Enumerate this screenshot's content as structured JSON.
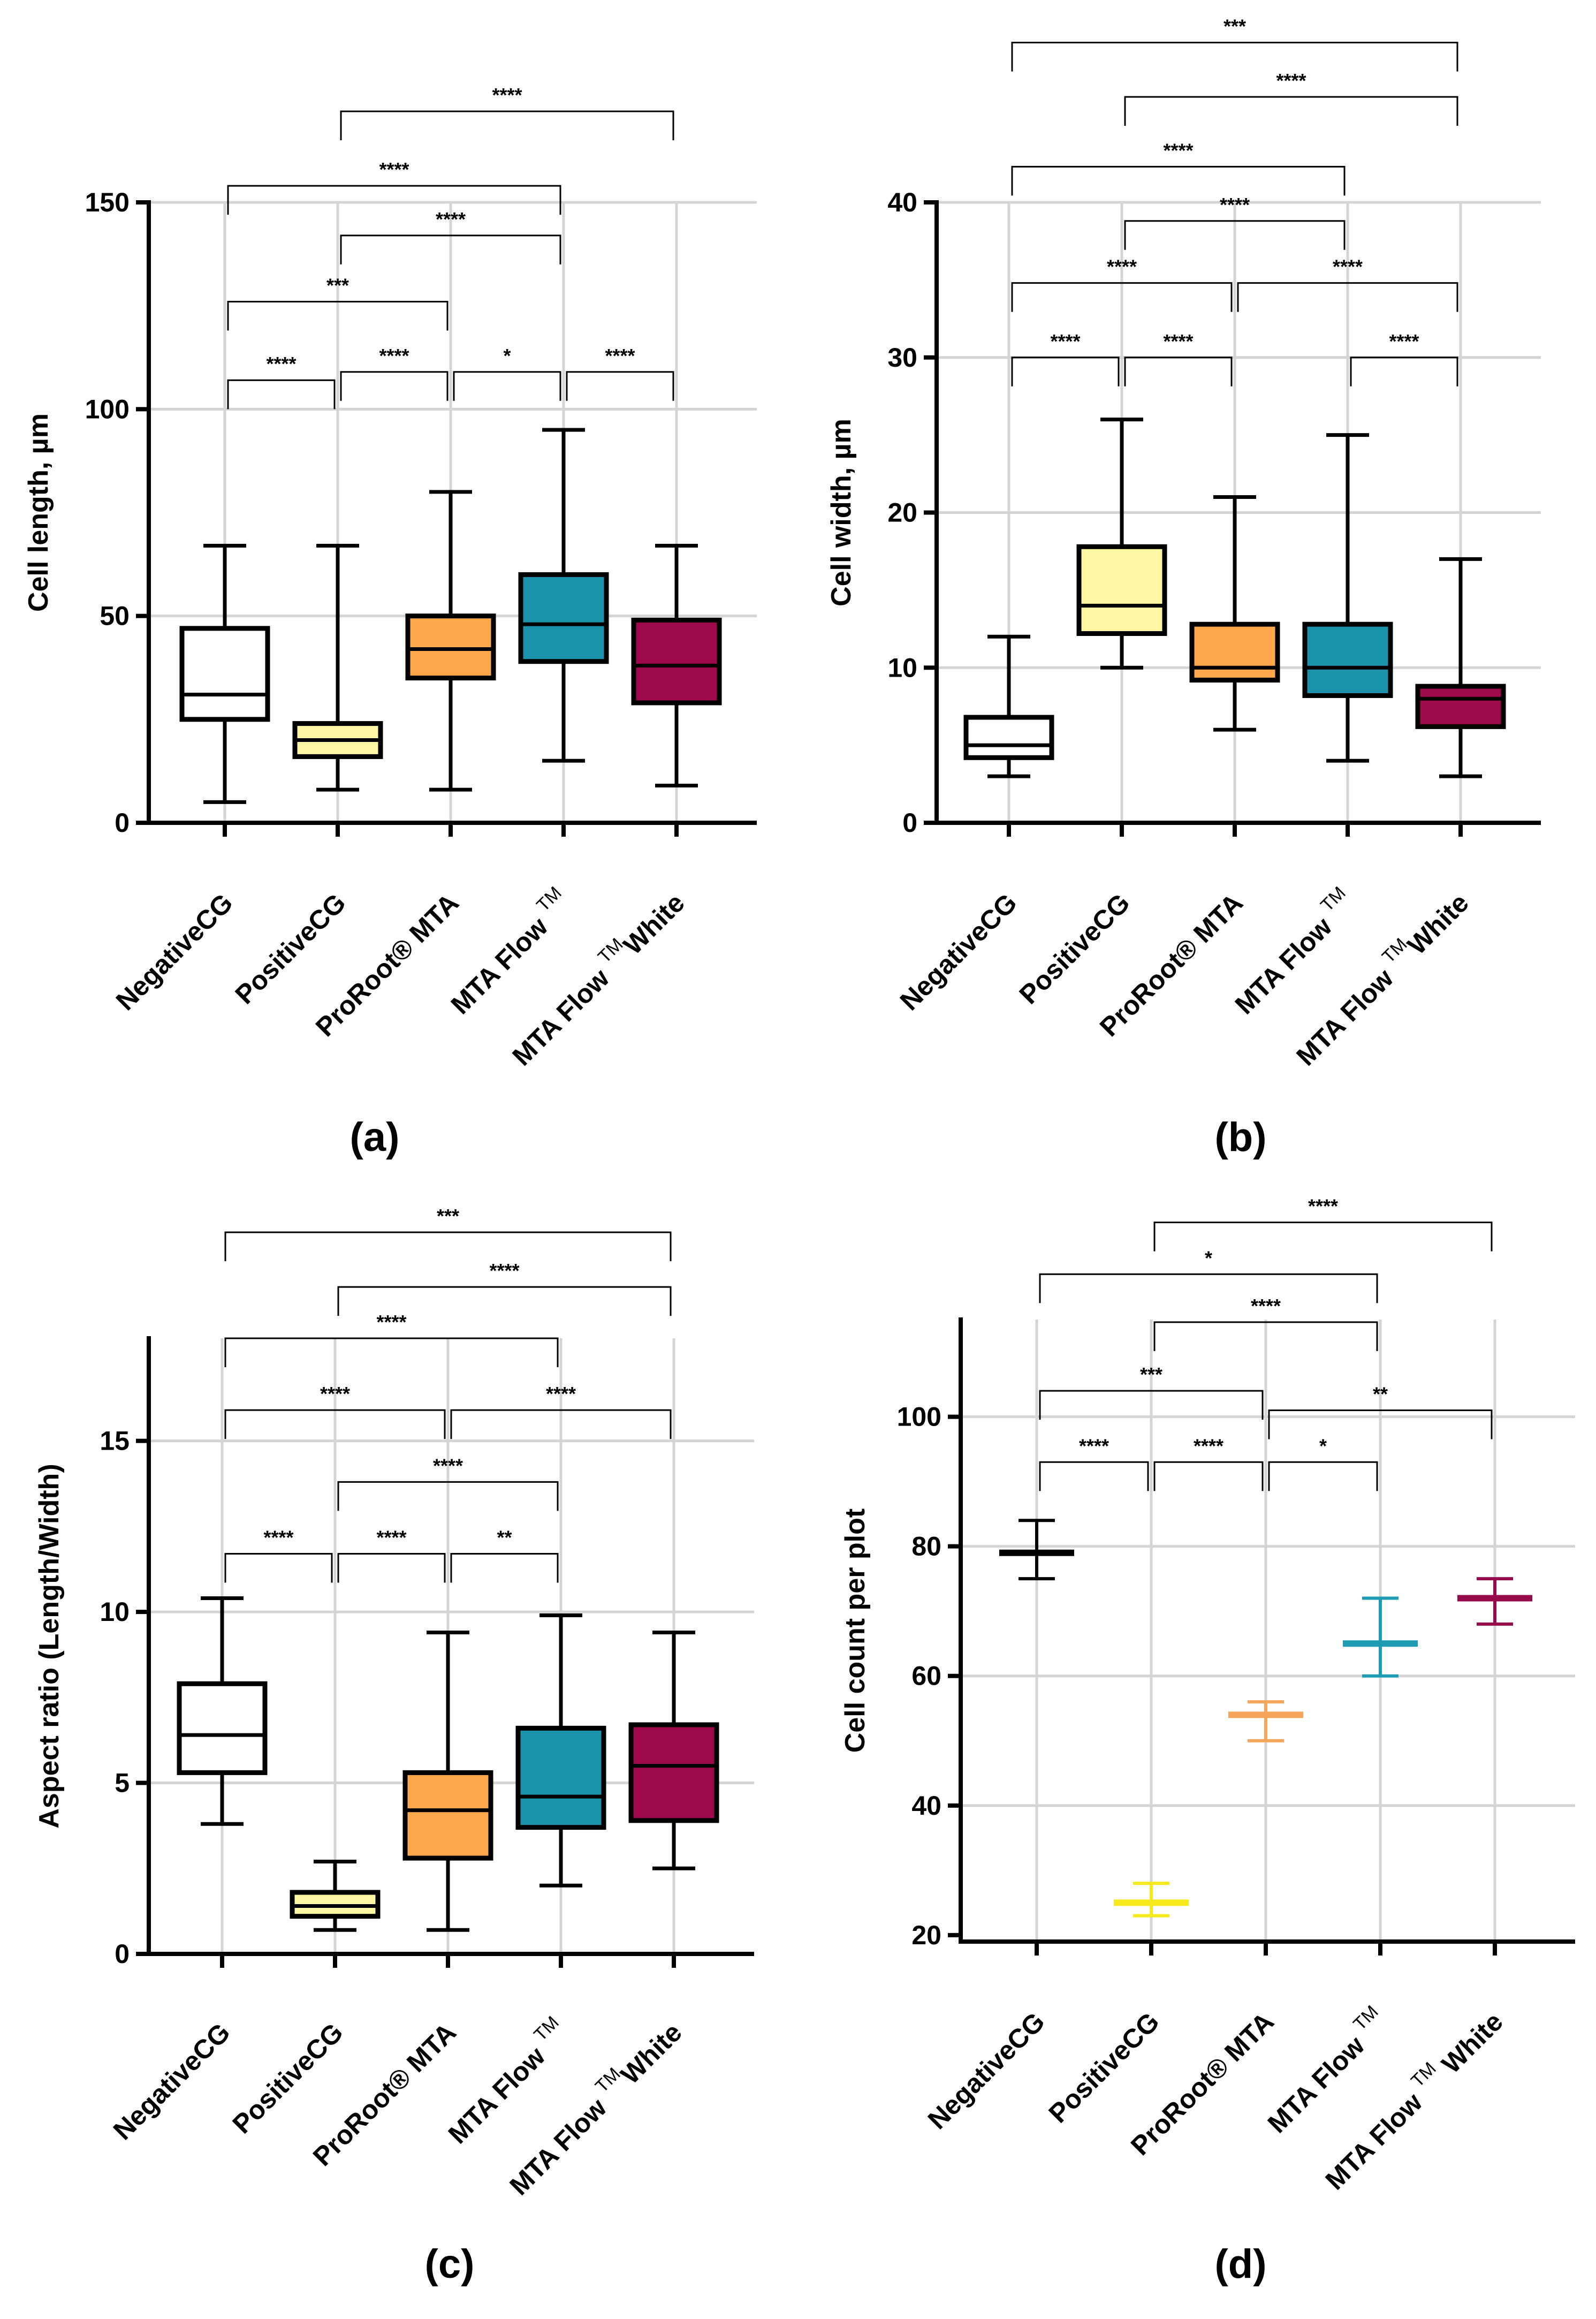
{
  "figure": {
    "categories": [
      "NegativeCG",
      "PositiveCG",
      "ProRoot® MTA",
      "MTA Flow",
      "MTA Flow White"
    ],
    "tm_mark": "TM",
    "colors": [
      "#ffffff",
      "#fff7a3",
      "#fda64a",
      "#1a93ab",
      "#9e0a4c"
    ],
    "point_colors": [
      "#000000",
      "#f5e91c",
      "#f5a55a",
      "#1d9cb4",
      "#960b4c"
    ]
  },
  "chart_data": [
    {
      "id": "a",
      "type": "box",
      "panel_label": "(a)",
      "ylabel": "Cell length, µm",
      "ylim": [
        0,
        150
      ],
      "yticks": [
        0,
        50,
        100,
        150
      ],
      "tick_labels": [
        "0",
        "50",
        "100",
        "150"
      ],
      "grid": true,
      "series": [
        {
          "category": "NegativeCG",
          "min": 5,
          "q1": 25,
          "median": 31,
          "q3": 47,
          "max": 67
        },
        {
          "category": "PositiveCG",
          "min": 8,
          "q1": 16,
          "median": 20,
          "q3": 24,
          "max": 67
        },
        {
          "category": "ProRoot® MTA",
          "min": 8,
          "q1": 35,
          "median": 42,
          "q3": 50,
          "max": 80
        },
        {
          "category": "MTA Flow",
          "min": 15,
          "q1": 39,
          "median": 48,
          "q3": 60,
          "max": 95
        },
        {
          "category": "MTA Flow White",
          "min": 9,
          "q1": 29,
          "median": 38,
          "q3": 49,
          "max": 67
        }
      ],
      "significance": [
        {
          "from": 0,
          "to": 1,
          "y": 107,
          "label": "****"
        },
        {
          "from": 1,
          "to": 2,
          "y": 109,
          "label": "****"
        },
        {
          "from": 2,
          "to": 3,
          "y": 109,
          "label": "*"
        },
        {
          "from": 3,
          "to": 4,
          "y": 109,
          "label": "****"
        },
        {
          "from": 0,
          "to": 2,
          "y": 126,
          "label": "***"
        },
        {
          "from": 1,
          "to": 3,
          "y": 142,
          "label": "****"
        },
        {
          "from": 0,
          "to": 3,
          "y": 154,
          "label": "****"
        },
        {
          "from": 1,
          "to": 4,
          "y": 172,
          "label": "****"
        }
      ]
    },
    {
      "id": "b",
      "type": "box",
      "panel_label": "(b)",
      "ylabel": "Cell width, µm",
      "ylim": [
        0,
        40
      ],
      "yticks": [
        0,
        10,
        20,
        30,
        40
      ],
      "tick_labels": [
        "0",
        "10",
        "20",
        "30",
        "40"
      ],
      "grid": true,
      "series": [
        {
          "category": "NegativeCG",
          "min": 3,
          "q1": 4.2,
          "median": 5,
          "q3": 6.8,
          "max": 12
        },
        {
          "category": "PositiveCG",
          "min": 10,
          "q1": 12.2,
          "median": 14,
          "q3": 17.8,
          "max": 26
        },
        {
          "category": "ProRoot® MTA",
          "min": 6,
          "q1": 9.2,
          "median": 10,
          "q3": 12.8,
          "max": 21
        },
        {
          "category": "MTA Flow",
          "min": 4,
          "q1": 8.2,
          "median": 10,
          "q3": 12.8,
          "max": 25
        },
        {
          "category": "MTA Flow White",
          "min": 3,
          "q1": 6.2,
          "median": 8,
          "q3": 8.8,
          "max": 17
        }
      ],
      "significance": [
        {
          "from": 0,
          "to": 1,
          "y": 30,
          "label": "****"
        },
        {
          "from": 1,
          "to": 2,
          "y": 30,
          "label": "****"
        },
        {
          "from": 3,
          "to": 4,
          "y": 30,
          "label": "****"
        },
        {
          "from": 0,
          "to": 2,
          "y": 34.8,
          "label": "****"
        },
        {
          "from": 2,
          "to": 4,
          "y": 34.8,
          "label": "****"
        },
        {
          "from": 1,
          "to": 3,
          "y": 38.8,
          "label": "****"
        },
        {
          "from": 0,
          "to": 3,
          "y": 42.3,
          "label": "****"
        },
        {
          "from": 1,
          "to": 4,
          "y": 46.8,
          "label": "****"
        },
        {
          "from": 0,
          "to": 4,
          "y": 50.3,
          "label": "***"
        }
      ]
    },
    {
      "id": "c",
      "type": "box",
      "panel_label": "(c)",
      "ylabel": "Aspect ratio  (Length/Width)",
      "ylim": [
        0,
        18
      ],
      "yticks": [
        0,
        5,
        10,
        15
      ],
      "tick_labels": [
        "0",
        "5",
        "10",
        "15"
      ],
      "grid": true,
      "series": [
        {
          "category": "NegativeCG",
          "min": 3.8,
          "q1": 5.3,
          "median": 6.4,
          "q3": 7.9,
          "max": 10.4
        },
        {
          "category": "PositiveCG",
          "min": 0.7,
          "q1": 1.1,
          "median": 1.4,
          "q3": 1.8,
          "max": 2.7
        },
        {
          "category": "ProRoot® MTA",
          "min": 0.7,
          "q1": 2.8,
          "median": 4.2,
          "q3": 5.3,
          "max": 9.4
        },
        {
          "category": "MTA Flow",
          "min": 2,
          "q1": 3.7,
          "median": 4.6,
          "q3": 6.6,
          "max": 9.9
        },
        {
          "category": "MTA Flow White",
          "min": 2.5,
          "q1": 3.9,
          "median": 5.5,
          "q3": 6.7,
          "max": 9.4
        }
      ],
      "significance": [
        {
          "from": 0,
          "to": 1,
          "y": 11.7,
          "label": "****"
        },
        {
          "from": 1,
          "to": 2,
          "y": 11.7,
          "label": "****"
        },
        {
          "from": 2,
          "to": 3,
          "y": 11.7,
          "label": "**"
        },
        {
          "from": 1,
          "to": 3,
          "y": 13.8,
          "label": "****"
        },
        {
          "from": 0,
          "to": 2,
          "y": 15.9,
          "label": "****"
        },
        {
          "from": 2,
          "to": 4,
          "y": 15.9,
          "label": "****"
        },
        {
          "from": 0,
          "to": 3,
          "y": 18,
          "label": "****"
        },
        {
          "from": 1,
          "to": 4,
          "y": 19.5,
          "label": "****"
        },
        {
          "from": 0,
          "to": 4,
          "y": 21.1,
          "label": "***"
        }
      ]
    },
    {
      "id": "d",
      "type": "scatter",
      "panel_label": "(d)",
      "ylabel": "Cell count per plot",
      "ylim": [
        19,
        115
      ],
      "yticks": [
        20,
        40,
        60,
        80,
        100
      ],
      "tick_labels": [
        "20",
        "40",
        "60",
        "80",
        "100"
      ],
      "grid": true,
      "series": [
        {
          "category": "NegativeCG",
          "mean": 79,
          "low": 75,
          "high": 84
        },
        {
          "category": "PositiveCG",
          "mean": 25,
          "low": 23,
          "high": 28
        },
        {
          "category": "ProRoot® MTA",
          "mean": 54,
          "low": 50,
          "high": 56
        },
        {
          "category": "MTA Flow",
          "mean": 65,
          "low": 60,
          "high": 72
        },
        {
          "category": "MTA Flow White",
          "mean": 72,
          "low": 68,
          "high": 75
        }
      ],
      "significance": [
        {
          "from": 0,
          "to": 1,
          "y": 93,
          "label": "****"
        },
        {
          "from": 1,
          "to": 2,
          "y": 93,
          "label": "****"
        },
        {
          "from": 2,
          "to": 3,
          "y": 93,
          "label": "*"
        },
        {
          "from": 2,
          "to": 4,
          "y": 101,
          "label": "**"
        },
        {
          "from": 0,
          "to": 2,
          "y": 104,
          "label": "***"
        },
        {
          "from": 1,
          "to": 3,
          "y": 114.6,
          "label": "****"
        },
        {
          "from": 0,
          "to": 3,
          "y": 122,
          "label": "*"
        },
        {
          "from": 1,
          "to": 4,
          "y": 130,
          "label": "****"
        }
      ]
    }
  ]
}
